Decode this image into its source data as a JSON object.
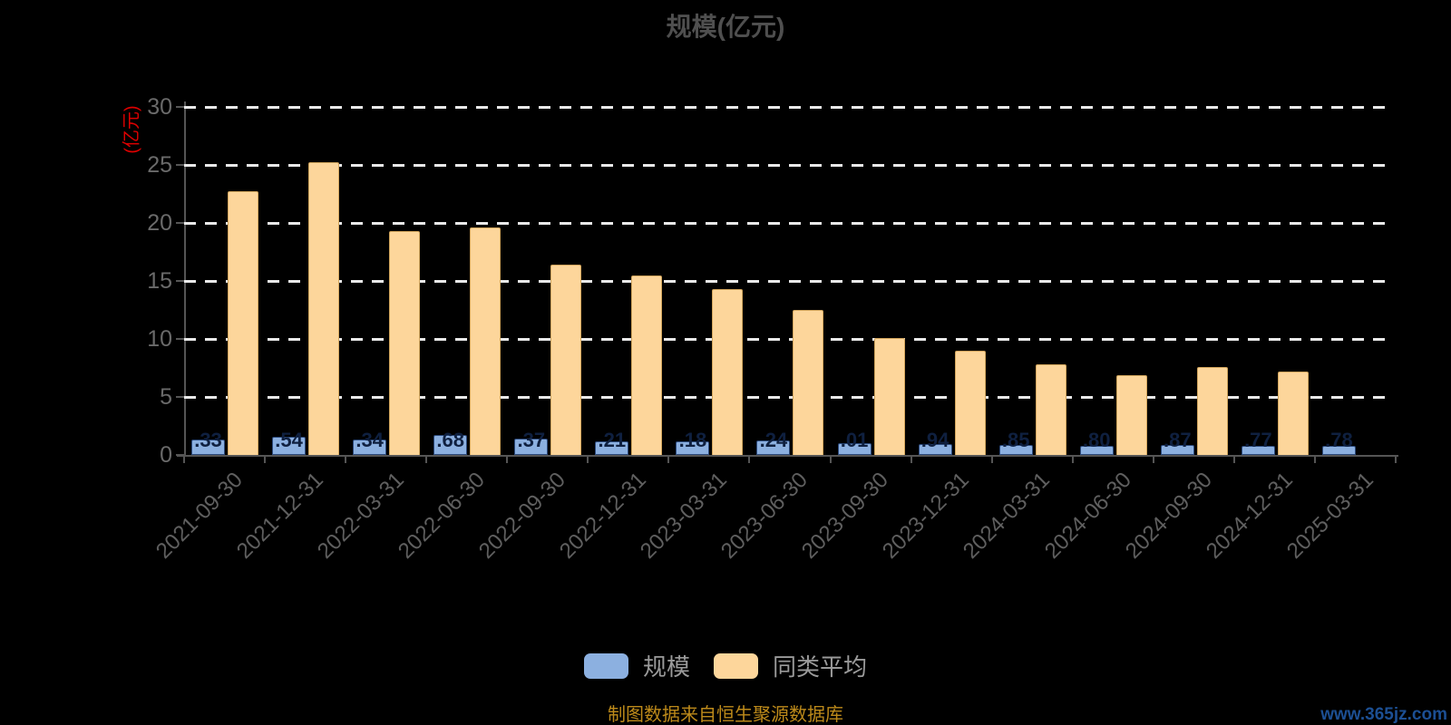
{
  "title": "规模(亿元)",
  "y_axis": {
    "name": "(亿元)",
    "ticks": [
      0,
      5,
      10,
      15,
      20,
      25,
      30
    ],
    "max": 30
  },
  "footer": {
    "source": "制图数据来自恒生聚源数据库",
    "watermark": "www.365jz.com"
  },
  "chart_data": {
    "type": "bar",
    "title": "规模(亿元)",
    "ylabel": "(亿元)",
    "ylim": [
      0,
      30
    ],
    "grid": "dashed-white-horizontal",
    "legend_position": "bottom",
    "categories": [
      "2021-09-30",
      "2021-12-31",
      "2022-03-31",
      "2022-06-30",
      "2022-09-30",
      "2022-12-31",
      "2023-03-31",
      "2023-06-30",
      "2023-09-30",
      "2023-12-31",
      "2024-03-31",
      "2024-06-30",
      "2024-09-30",
      "2024-12-31",
      "2025-03-31"
    ],
    "series": [
      {
        "name": "规模",
        "color": "#8cb0e0",
        "values": [
          1.33,
          1.54,
          1.34,
          1.68,
          1.37,
          1.21,
          1.18,
          1.24,
          1.01,
          0.94,
          0.85,
          0.8,
          0.87,
          0.77,
          0.78
        ],
        "visible_labels": [
          ".33",
          ".54",
          ".34",
          ".68",
          ".37",
          ".21",
          ".18",
          ".24",
          ".01",
          ".94",
          ".85",
          ".80",
          ".87",
          ".77",
          ".78"
        ]
      },
      {
        "name": "同类平均",
        "color": "#fdd69b",
        "values": [
          22.7,
          25.2,
          19.3,
          19.6,
          16.4,
          15.5,
          14.3,
          12.5,
          10.1,
          9.0,
          7.8,
          6.9,
          7.6,
          7.2,
          null
        ]
      }
    ]
  }
}
